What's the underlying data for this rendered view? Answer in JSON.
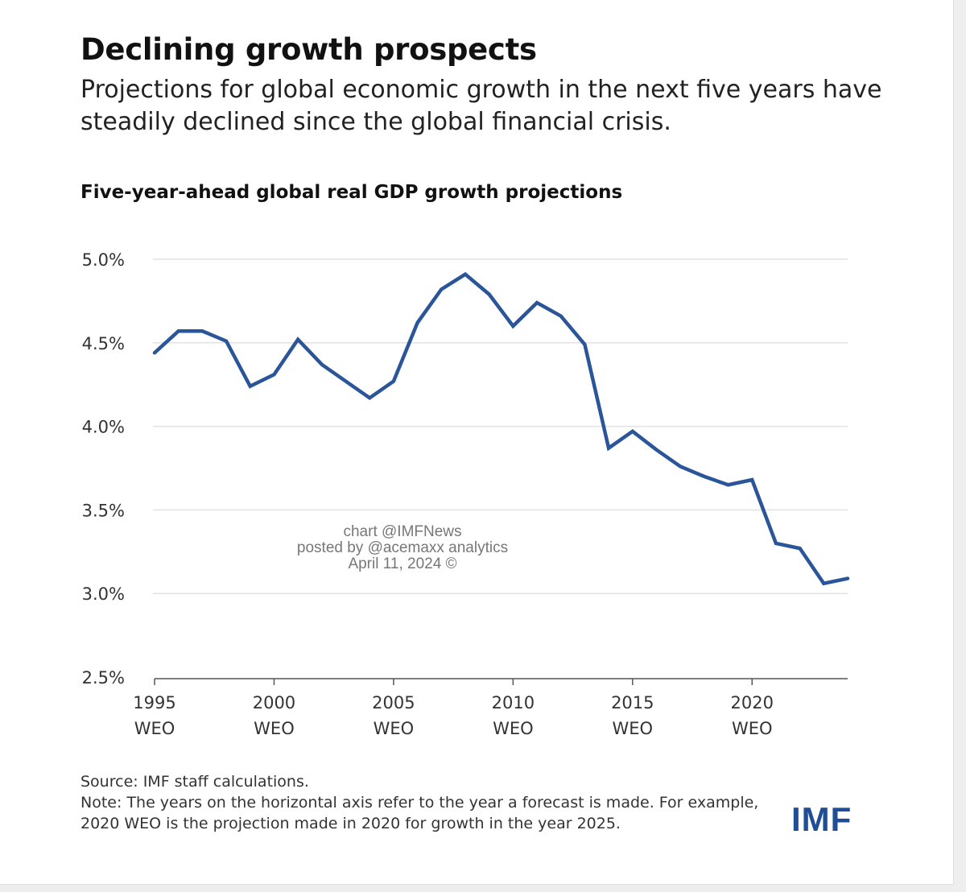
{
  "header": {
    "title": "Declining growth prospects",
    "subtitle": "Projections for global economic growth in the next five years have steadily declined since the global financial crisis."
  },
  "chart_data": {
    "type": "line",
    "title": "Five-year-ahead global real GDP growth projections",
    "x": [
      1995,
      1996,
      1997,
      1998,
      1999,
      2000,
      2001,
      2002,
      2003,
      2004,
      2005,
      2006,
      2007,
      2008,
      2009,
      2010,
      2011,
      2012,
      2013,
      2014,
      2015,
      2016,
      2017,
      2018,
      2019,
      2020,
      2021,
      2022,
      2023,
      2024
    ],
    "series": [
      {
        "values": [
          4.44,
          4.57,
          4.57,
          4.51,
          4.24,
          4.31,
          4.52,
          4.37,
          4.27,
          4.17,
          4.27,
          4.62,
          4.82,
          4.91,
          4.79,
          4.6,
          4.74,
          4.66,
          4.49,
          3.87,
          3.97,
          3.86,
          3.76,
          3.7,
          3.65,
          3.68,
          3.3,
          3.27,
          3.06,
          3.09
        ],
        "color": "#2a5599"
      }
    ],
    "ylim": [
      2.5,
      5.0
    ],
    "yticks": [
      "2.5%",
      "3.0%",
      "3.5%",
      "4.0%",
      "4.5%",
      "5.0%"
    ],
    "xticks": [
      {
        "year": "1995",
        "label": "WEO"
      },
      {
        "year": "2000",
        "label": "WEO"
      },
      {
        "year": "2005",
        "label": "WEO"
      },
      {
        "year": "2010",
        "label": "WEO"
      },
      {
        "year": "2015",
        "label": "WEO"
      },
      {
        "year": "2020",
        "label": "WEO"
      }
    ],
    "grid": true
  },
  "watermark": [
    "chart @IMFNews",
    "posted by @acemaxx analytics",
    "April 11, 2024 ©"
  ],
  "footer": {
    "source": "Source: IMF staff calculations.",
    "note1": "Note: The years on the horizontal axis refer to the year a forecast is made. For example,",
    "note2": "2020 WEO is the projection made in 2020 for growth in the year 2025."
  },
  "logo": "IMF"
}
